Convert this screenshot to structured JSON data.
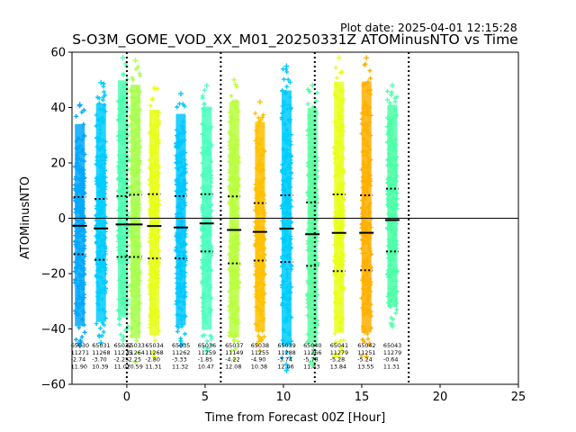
{
  "plot_date": "Plot date: 2025-04-01 12:15:28",
  "chart_data": {
    "type": "scatter",
    "title": "S-O3M_GOME_VOD_XX_M01_20250331Z ATOMinusNTO vs Time",
    "xlabel": "Time from Forecast 00Z [Hour]",
    "ylabel": "ATOMinusNTO",
    "xlim": [
      -3.5,
      25
    ],
    "ylim": [
      -60,
      60
    ],
    "xticks": [
      0,
      5,
      10,
      15,
      20,
      25
    ],
    "yticks": [
      -60,
      -40,
      -20,
      0,
      20,
      40,
      60
    ],
    "grid": false,
    "zero_line": 0,
    "forecast_boundaries": [
      0,
      6,
      12,
      18
    ],
    "orbits": [
      {
        "orbit": "65030",
        "x": -3.0,
        "count": "11271",
        "mean": "-2.74",
        "std": "11.90",
        "color": "#00a8ff",
        "low": -46,
        "high": 41,
        "mean_val": -2.74,
        "q_low": -13.0,
        "q_high": 7.7
      },
      {
        "orbit": "65031",
        "x": -1.65,
        "count": "11268",
        "mean": "-3.70",
        "std": "10.39",
        "color": "#00ccff",
        "low": -45,
        "high": 49,
        "mean_val": -3.7,
        "q_low": -15.0,
        "q_high": 7.0
      },
      {
        "orbit": "65032",
        "x": -0.25,
        "count": "11275",
        "mean": "-2.25",
        "std": "11.07",
        "color": "#4dffb0",
        "low": -44,
        "high": 58,
        "mean_val": -2.25,
        "q_low": -14.0,
        "q_high": 8.0
      },
      {
        "orbit": "65033",
        "x": 0.55,
        "count": "11264",
        "mean": "-2.25",
        "std": "10.59",
        "color": "#a8ff4d",
        "low": -52,
        "high": 57,
        "mean_val": -2.25,
        "q_low": -14.0,
        "q_high": 8.5
      },
      {
        "orbit": "65034",
        "x": 1.75,
        "count": "11268",
        "mean": "-2.80",
        "std": "11.31",
        "color": "#e6ff1a",
        "low": -50,
        "high": 47,
        "mean_val": -2.8,
        "q_low": -14.5,
        "q_high": 8.7
      },
      {
        "orbit": "65035",
        "x": 3.45,
        "count": "11262",
        "mean": "-3.33",
        "std": "11.32",
        "color": "#00c8ff",
        "low": -46,
        "high": 45,
        "mean_val": -3.33,
        "q_low": -14.5,
        "q_high": 8.0
      },
      {
        "orbit": "65036",
        "x": 5.1,
        "count": "11259",
        "mean": "-1.85",
        "std": "10.47",
        "color": "#4dffc0",
        "low": -48,
        "high": 48,
        "mean_val": -1.85,
        "q_low": -12.0,
        "q_high": 8.7
      },
      {
        "orbit": "65037",
        "x": 6.85,
        "count": "11149",
        "mean": "-4.22",
        "std": "12.08",
        "color": "#b8ff3d",
        "low": -51,
        "high": 50,
        "mean_val": -4.22,
        "q_low": -16.3,
        "q_high": 7.9
      },
      {
        "orbit": "65038",
        "x": 8.5,
        "count": "11255",
        "mean": "-4.90",
        "std": "10.38",
        "color": "#ffc000",
        "low": -48,
        "high": 42,
        "mean_val": -4.9,
        "q_low": -15.3,
        "q_high": 5.5
      },
      {
        "orbit": "65039",
        "x": 10.2,
        "count": "11288",
        "mean": "-3.74",
        "std": "12.06",
        "color": "#00ccff",
        "low": -55,
        "high": 55,
        "mean_val": -3.74,
        "q_low": -15.8,
        "q_high": 8.3
      },
      {
        "orbit": "65040",
        "x": 11.85,
        "count": "11266",
        "mean": "-5.78",
        "std": "11.43",
        "color": "#5cffa0",
        "low": -53,
        "high": 48,
        "mean_val": -5.78,
        "q_low": -17.2,
        "q_high": 5.7
      },
      {
        "orbit": "65041",
        "x": 13.55,
        "count": "11279",
        "mean": "-5.28",
        "std": "13.84",
        "color": "#e8ff1a",
        "low": -50,
        "high": 58,
        "mean_val": -5.28,
        "q_low": -19.1,
        "q_high": 8.6
      },
      {
        "orbit": "65042",
        "x": 15.3,
        "count": "11251",
        "mean": "-5.24",
        "std": "13.55",
        "color": "#ffb000",
        "low": -50,
        "high": 58,
        "mean_val": -5.24,
        "q_low": -18.8,
        "q_high": 8.3
      },
      {
        "orbit": "65043",
        "x": 16.95,
        "count": "11279",
        "mean": "-0.64",
        "std": "11.31",
        "color": "#4dffa8",
        "low": -39,
        "high": 48,
        "mean_val": -0.64,
        "q_low": -12.0,
        "q_high": 10.7
      }
    ]
  }
}
